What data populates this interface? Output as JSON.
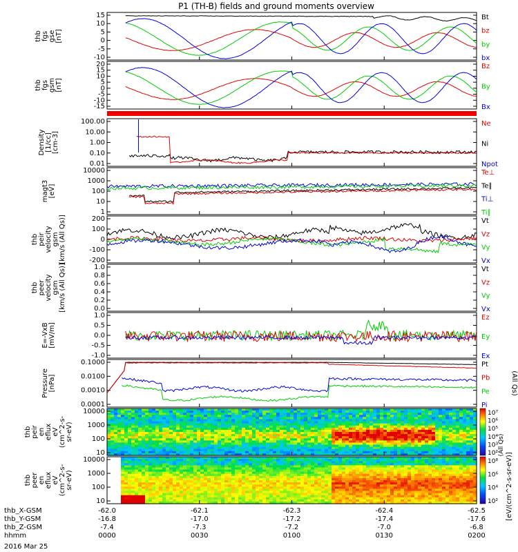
{
  "title": "P1 (TH-B) fields and ground moments overview",
  "date_label": "2016 Mar 25",
  "colors": {
    "black": "#000000",
    "red": "#e00000",
    "green": "#00cc00",
    "blue": "#0000e0"
  },
  "panels": [
    {
      "ylabel": [
        "thb",
        "fgs",
        "gse",
        "[nT]"
      ],
      "ticks": [
        "15",
        "10",
        "5",
        "0",
        "-5",
        "-10"
      ],
      "legend": [
        {
          "text": "Bt",
          "color": "black"
        },
        {
          "text": "bz",
          "color": "red"
        },
        {
          "text": "by",
          "color": "green"
        },
        {
          "text": "bx",
          "color": "blue"
        }
      ]
    },
    {
      "ylabel": [
        "thb",
        "fgs",
        "gsm",
        "[nT]"
      ],
      "ticks": [
        "20",
        "15",
        "10",
        "5",
        "0",
        "-5",
        "-10",
        "-15"
      ],
      "legend": [
        {
          "text": "Bz",
          "color": "red"
        },
        {
          "text": "By",
          "color": "green"
        },
        {
          "text": "Bx",
          "color": "blue"
        }
      ]
    },
    {
      "ylabel": [
        "Density",
        "[1/cc]",
        "[cm-3]"
      ],
      "ticks": [
        "100.00",
        "10.00",
        "1.00",
        "0.10",
        "0.01"
      ],
      "legend": [
        {
          "text": "Ne",
          "color": "red"
        },
        {
          "text": "Ni",
          "color": "black"
        },
        {
          "text": "Npot",
          "color": "blue"
        }
      ]
    },
    {
      "ylabel": [
        "magt3",
        "[eV]"
      ],
      "ticks": [
        "10000",
        "1000",
        "100",
        "10",
        "1"
      ],
      "legend": [
        {
          "text": "Te⊥",
          "color": "red"
        },
        {
          "text": "Te∥",
          "color": "black"
        },
        {
          "text": "Ti⊥",
          "color": "blue"
        },
        {
          "text": "Ti∥",
          "color": "green"
        }
      ]
    },
    {
      "ylabel": [
        "thb",
        "peir",
        "velocity",
        "gsm",
        "[km/s (All Qs)]"
      ],
      "ticks": [
        "200",
        "100",
        "0",
        "-100",
        "-200"
      ],
      "legend": [
        {
          "text": "Vt",
          "color": "black"
        },
        {
          "text": "Vz",
          "color": "red"
        },
        {
          "text": "Vy",
          "color": "green"
        },
        {
          "text": "Vx",
          "color": "blue"
        }
      ]
    },
    {
      "ylabel": [
        "thb",
        "peer",
        "velocity",
        "gsm",
        "[km/s (All Qs)]"
      ],
      "ticks": [
        "1.0",
        "0.8",
        "0.6",
        "0.4",
        "0.2",
        "0.0"
      ],
      "legend": [
        {
          "text": "Vt",
          "color": "black"
        },
        {
          "text": "Vz",
          "color": "red"
        },
        {
          "text": "Vy",
          "color": "green"
        },
        {
          "text": "Vx",
          "color": "blue"
        }
      ]
    },
    {
      "ylabel": [
        "E=-VxB",
        "[mV/m]"
      ],
      "ticks": [
        "1.0",
        "0.5",
        "0.0",
        "-0.5",
        "-1.0"
      ],
      "legend": [
        {
          "text": "Ez",
          "color": "red"
        },
        {
          "text": "Ey",
          "color": "green"
        },
        {
          "text": "Ex",
          "color": "blue"
        }
      ]
    },
    {
      "ylabel": [
        "Pressure",
        "[nPa]"
      ],
      "ticks": [
        "0.1000",
        "0.0100",
        "0.0010",
        "0.0001"
      ],
      "legend": [
        {
          "text": "Pt",
          "color": "black"
        },
        {
          "text": "Pb",
          "color": "red"
        },
        {
          "text": "Pe",
          "color": "green"
        },
        {
          "text": "Pi",
          "color": "blue"
        }
      ],
      "side_label": "(All Qs)"
    },
    {
      "ylabel": [
        "thb",
        "peir",
        "en",
        "eflux",
        "eV",
        "(cm^2-s-",
        "sr-eV)"
      ],
      "ticks": [
        "10000",
        "1000",
        "100",
        "10"
      ],
      "cbar_ticks": [
        "10⁷",
        "10⁶",
        "10⁵",
        "10⁴",
        "10³",
        "10²"
      ]
    },
    {
      "ylabel": [
        "thb",
        "peer",
        "en",
        "eflux",
        "eV",
        "(cm^2-s-",
        "sr-eV)"
      ],
      "ticks": [
        "10000",
        "1000",
        "100",
        "10"
      ],
      "cbar_ticks": [
        "10⁸",
        "10⁶",
        "10⁴",
        "10²"
      ]
    }
  ],
  "cbar_label": "[eV/(cm^2-s-sr-eV)]",
  "cbar_label2": "(All Qs)",
  "x_axis": {
    "rows": [
      {
        "name": "thb_X-GSM",
        "values": [
          "-62.0",
          "-62.1",
          "-62.3",
          "-62.4",
          "-62.5"
        ]
      },
      {
        "name": "thb_Y-GSM",
        "values": [
          "-16.8",
          "-17.0",
          "-17.2",
          "-17.4",
          "-17.6"
        ]
      },
      {
        "name": "thb_Z-GSM",
        "values": [
          "-7.4",
          "-7.3",
          "-7.2",
          "-7.0",
          "-6.8"
        ]
      },
      {
        "name": "hhmm",
        "values": [
          "0000",
          "0030",
          "0100",
          "0130",
          "0200"
        ]
      }
    ]
  },
  "chart_data": {
    "type": "line",
    "title": "P1 (TH-B) fields and ground moments overview",
    "x": [
      "0000",
      "0030",
      "0100",
      "0130",
      "0200"
    ],
    "xlabel": "hhmm",
    "panels": [
      {
        "name": "thb fgs gse [nT]",
        "ylim": [
          -13,
          16
        ],
        "series": [
          {
            "name": "Bt",
            "values": [
              14,
              14,
              14,
              12,
              10
            ]
          },
          {
            "name": "bz",
            "values": [
              3,
              -5,
              5,
              -3,
              4
            ]
          },
          {
            "name": "by",
            "values": [
              -8,
              4,
              12,
              -6,
              6
            ]
          },
          {
            "name": "bx",
            "values": [
              -12,
              12,
              -12,
              10,
              -8
            ]
          }
        ]
      },
      {
        "name": "thb fgs gsm [nT]",
        "ylim": [
          -17,
          20
        ],
        "series": [
          {
            "name": "Bz",
            "values": [
              2,
              -3,
              7,
              -4,
              4
            ]
          },
          {
            "name": "By",
            "values": [
              -6,
              5,
              12,
              -8,
              8
            ]
          },
          {
            "name": "Bx",
            "values": [
              -12,
              14,
              -12,
              12,
              -10
            ]
          }
        ]
      },
      {
        "name": "Density [1/cc]",
        "scale": "log",
        "ylim": [
          0.01,
          100
        ],
        "series": [
          {
            "name": "Ne",
            "values": [
              3,
              0.1,
              0.05,
              0.15,
              0.12
            ]
          },
          {
            "name": "Ni",
            "values": [
              0.2,
              0.08,
              0.05,
              0.15,
              0.12
            ]
          }
        ]
      },
      {
        "name": "magt3 [eV]",
        "scale": "log",
        "ylim": [
          1,
          10000
        ],
        "series": [
          {
            "name": "Te⊥",
            "values": [
              40,
              100,
              120,
              200,
              150
            ]
          },
          {
            "name": "Te∥",
            "values": [
              60,
              130,
              200,
              300,
              250
            ]
          },
          {
            "name": "Ti⊥",
            "values": [
              300,
              400,
              600,
              900,
              700
            ]
          },
          {
            "name": "Ti∥",
            "values": [
              250,
              350,
              500,
              800,
              600
            ]
          }
        ]
      },
      {
        "name": "thb peir velocity gsm [km/s (All Qs)]",
        "ylim": [
          -200,
          200
        ],
        "series": [
          {
            "name": "Vt",
            "values": [
              50,
              100,
              40,
              120,
              60
            ]
          },
          {
            "name": "Vz",
            "values": [
              0,
              -10,
              10,
              50,
              20
            ]
          },
          {
            "name": "Vy",
            "values": [
              -20,
              -40,
              0,
              -60,
              10
            ]
          },
          {
            "name": "Vx",
            "values": [
              -60,
              -80,
              -20,
              -100,
              20
            ]
          }
        ]
      },
      {
        "name": "E=-VxB [mV/m]",
        "ylim": [
          -1,
          1
        ],
        "series": [
          {
            "name": "Ez",
            "values": [
              0,
              0.1,
              0.1,
              0,
              -0.1
            ]
          },
          {
            "name": "Ey",
            "values": [
              0.1,
              0.1,
              0.2,
              0.6,
              0
            ]
          },
          {
            "name": "Ex",
            "values": [
              -0.1,
              -0.1,
              0,
              -0.3,
              -0.1
            ]
          }
        ]
      },
      {
        "name": "Pressure [nPa]",
        "scale": "log",
        "ylim": [
          0.0001,
          0.1
        ],
        "series": [
          {
            "name": "Pt",
            "values": [
              0.05,
              0.06,
              0.06,
              0.05,
              0.03
            ]
          },
          {
            "name": "Pb",
            "values": [
              0.05,
              0.06,
              0.06,
              0.04,
              0.03
            ]
          },
          {
            "name": "Pe",
            "values": [
              0.003,
              0.0008,
              0.0007,
              0.002,
              0.001
            ]
          },
          {
            "name": "Pi",
            "values": [
              0.005,
              0.002,
              0.002,
              0.005,
              0.004
            ]
          }
        ]
      }
    ]
  }
}
